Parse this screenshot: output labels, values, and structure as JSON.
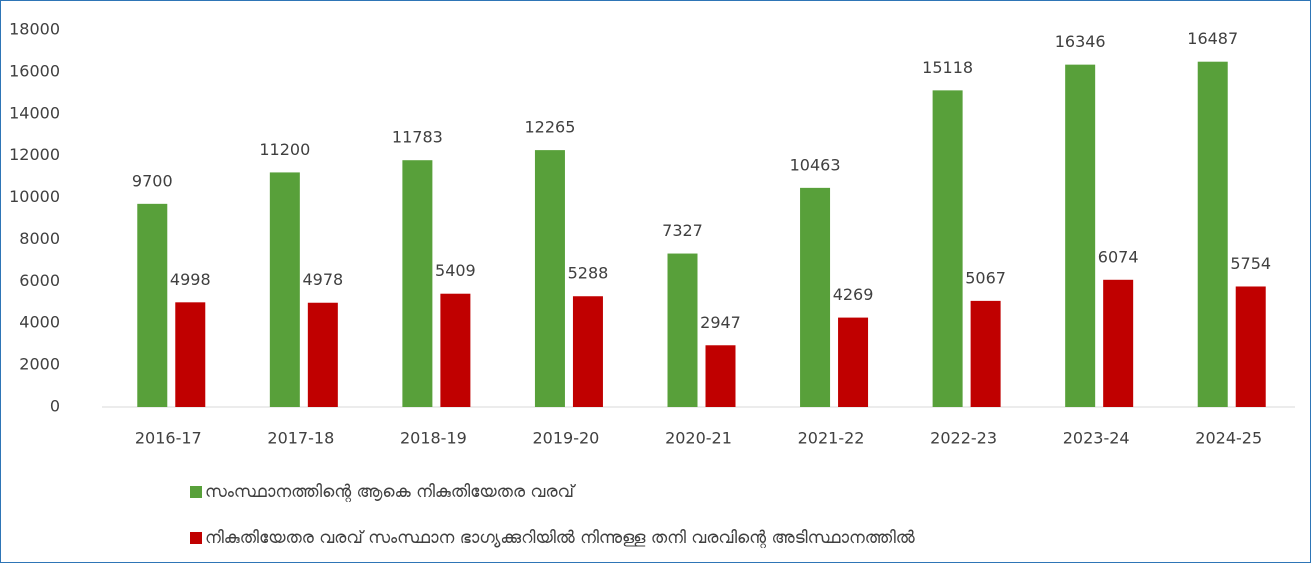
{
  "chart_data": {
    "type": "bar",
    "categories": [
      "2016-17",
      "2017-18",
      "2018-19",
      "2019-20",
      "2020-21",
      "2021-22",
      "2022-23",
      "2023-24",
      "2024-25"
    ],
    "series": [
      {
        "name": "സംസ്ഥാനത്തിന്റെ ആകെ നികുതിയേതര വരവ്",
        "color": "#58a03a",
        "values": [
          9700,
          11200,
          11783,
          12265,
          7327,
          10463,
          15118,
          16346,
          16487
        ]
      },
      {
        "name": "നികുതിയേതര വരവ് സംസ്ഥാന ഭാഗ്യക്കുറിയിൽ നിന്നുള്ള തനി വരവിന്റെ അടിസ്ഥാനത്തിൽ",
        "color": "#c00000",
        "values": [
          4998,
          4978,
          5409,
          5288,
          2947,
          4269,
          5067,
          6074,
          5754
        ]
      }
    ],
    "ylim": [
      0,
      18000
    ],
    "yticks": [
      0,
      2000,
      4000,
      6000,
      8000,
      10000,
      12000,
      14000,
      16000,
      18000
    ],
    "legend": "bottom"
  }
}
